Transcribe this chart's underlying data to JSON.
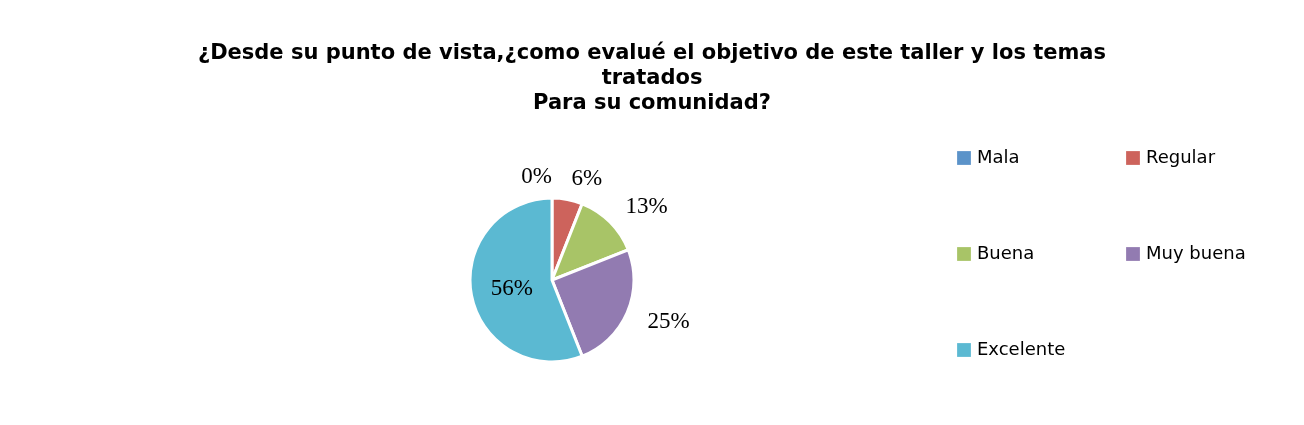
{
  "chart_data": {
    "type": "pie",
    "title": "¿Desde su punto de vista,¿como evalué  el objetivo de este taller y los temas\ntratados\nPara su comunidad?",
    "categories": [
      "Mala",
      "Regular",
      "Buena",
      "Muy buena",
      "Excelente"
    ],
    "values": [
      0,
      6,
      13,
      25,
      56
    ],
    "colors": [
      "#5b93c9",
      "#cd635c",
      "#a8c467",
      "#927bb1",
      "#5bb9d2"
    ],
    "value_labels": [
      "0%",
      "6%",
      "13%",
      "25%",
      "56%"
    ],
    "legend": "right"
  }
}
